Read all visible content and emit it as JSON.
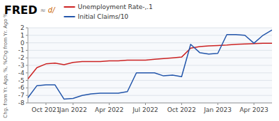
{
  "chart_data": {
    "type": "line",
    "title": "FRED",
    "annotations": [
      "≈",
      "d/"
    ],
    "y_label": "Chg. from Yr. Ago, %, %Chg from Yr. Ago %",
    "categories": [
      null,
      null,
      "Oct 2021",
      null,
      null,
      "Jan 2022",
      null,
      null,
      null,
      "Apr 2022",
      null,
      null,
      null,
      "Jul 2022",
      null,
      null,
      null,
      "Oct 2022",
      null,
      null,
      null,
      "Jan 2023",
      null,
      null,
      null,
      "Apr 2023",
      null,
      null
    ],
    "series": [
      {
        "name": "Unemployment Rate-,.1",
        "color": "#cc2222",
        "values": [
          -4.8,
          -3.3,
          -2.8,
          -2.7,
          -2.9,
          -2.6,
          -2.5,
          -2.5,
          -2.5,
          -2.4,
          -2.4,
          -2.3,
          -2.3,
          -2.3,
          -2.2,
          -2.1,
          -2.0,
          -1.9,
          -0.7,
          -0.5,
          -0.4,
          -0.35,
          -0.3,
          -0.2,
          -0.15,
          -0.1,
          -0.05,
          -0.05
        ]
      },
      {
        "name": "Initial Claims/10",
        "color": "#2255aa",
        "values": [
          -7.3,
          -5.7,
          -5.6,
          -5.6,
          -7.5,
          -7.4,
          -7.0,
          -6.8,
          -6.7,
          -6.7,
          -6.7,
          -6.5,
          -4.0,
          -4.0,
          -4.0,
          -4.4,
          -4.3,
          -4.5,
          -0.2,
          -1.3,
          -1.5,
          -1.4,
          1.1,
          1.1,
          1.0,
          -0.05,
          1.0,
          1.7
        ]
      }
    ],
    "ylim": [
      -8,
      2
    ],
    "yticks": [
      2,
      1,
      0,
      -1,
      -2,
      -3,
      -4,
      -5,
      -6,
      -7,
      -8
    ],
    "grid": true,
    "legend": "top-left"
  }
}
